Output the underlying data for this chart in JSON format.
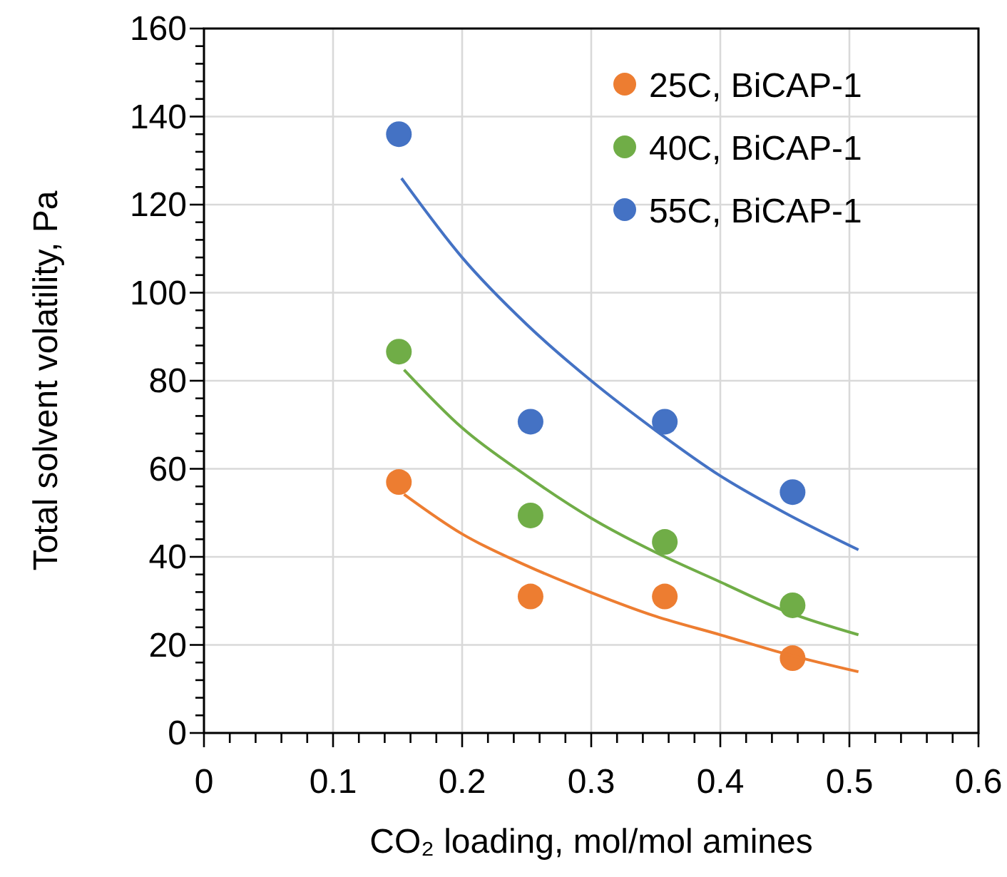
{
  "chart_data": {
    "type": "scatter",
    "xlabel": "CO₂ loading, mol/mol amines",
    "ylabel": "Total solvent volatility,  Pa",
    "xlim": [
      0,
      0.6
    ],
    "ylim": [
      0,
      160
    ],
    "xticks": [
      0,
      {
        "value": 0.02,
        "label": null
      },
      {
        "value": 0.04,
        "label": null
      },
      {
        "value": 0.06,
        "label": null
      },
      {
        "value": 0.08,
        "label": null
      },
      0.1,
      {
        "value": 0.12,
        "label": null
      },
      {
        "value": 0.14,
        "label": null
      },
      {
        "value": 0.16,
        "label": null
      },
      {
        "value": 0.18,
        "label": null
      },
      0.2,
      {
        "value": 0.22,
        "label": null
      },
      {
        "value": 0.24,
        "label": null
      },
      {
        "value": 0.26,
        "label": null
      },
      {
        "value": 0.28,
        "label": null
      },
      0.3,
      {
        "value": 0.32,
        "label": null
      },
      {
        "value": 0.34,
        "label": null
      },
      {
        "value": 0.36,
        "label": null
      },
      {
        "value": 0.38,
        "label": null
      },
      0.4,
      {
        "value": 0.42,
        "label": null
      },
      {
        "value": 0.44,
        "label": null
      },
      {
        "value": 0.46,
        "label": null
      },
      {
        "value": 0.48,
        "label": null
      },
      0.5,
      {
        "value": 0.52,
        "label": null
      },
      {
        "value": 0.54,
        "label": null
      },
      {
        "value": 0.56,
        "label": null
      },
      {
        "value": 0.58,
        "label": null
      },
      0.6
    ],
    "yticks": [
      0,
      {
        "value": 4,
        "label": null
      },
      {
        "value": 8,
        "label": null
      },
      {
        "value": 12,
        "label": null
      },
      {
        "value": 16,
        "label": null
      },
      20,
      {
        "value": 24,
        "label": null
      },
      {
        "value": 28,
        "label": null
      },
      {
        "value": 32,
        "label": null
      },
      {
        "value": 36,
        "label": null
      },
      40,
      {
        "value": 44,
        "label": null
      },
      {
        "value": 48,
        "label": null
      },
      {
        "value": 52,
        "label": null
      },
      {
        "value": 56,
        "label": null
      },
      60,
      {
        "value": 64,
        "label": null
      },
      {
        "value": 68,
        "label": null
      },
      {
        "value": 72,
        "label": null
      },
      {
        "value": 76,
        "label": null
      },
      80,
      {
        "value": 84,
        "label": null
      },
      {
        "value": 88,
        "label": null
      },
      {
        "value": 92,
        "label": null
      },
      {
        "value": 96,
        "label": null
      },
      100,
      {
        "value": 104,
        "label": null
      },
      {
        "value": 108,
        "label": null
      },
      {
        "value": 112,
        "label": null
      },
      {
        "value": 116,
        "label": null
      },
      120,
      {
        "value": 124,
        "label": null
      },
      {
        "value": 128,
        "label": null
      },
      {
        "value": 132,
        "label": null
      },
      {
        "value": 136,
        "label": null
      },
      140,
      {
        "value": 144,
        "label": null
      },
      {
        "value": 148,
        "label": null
      },
      {
        "value": 152,
        "label": null
      },
      {
        "value": 156,
        "label": null
      },
      160
    ],
    "grid": true,
    "legend": "top right",
    "series": [
      {
        "name": "25C, BiCAP-1",
        "color": "#ed7d31",
        "x": [
          0.151,
          0.253,
          0.357,
          0.456
        ],
        "values": [
          57,
          31,
          31,
          17
        ],
        "marker": "circle"
      },
      {
        "name": "40C, BiCAP-1",
        "color": "#70ad47",
        "x": [
          0.151,
          0.253,
          0.357,
          0.456
        ],
        "values": [
          86.6,
          49.4,
          43.4,
          29
        ],
        "marker": "circle"
      },
      {
        "name": "55C, BiCAP-1",
        "color": "#4472c4",
        "x": [
          0.151,
          0.253,
          0.357,
          0.456
        ],
        "values": [
          136,
          70.7,
          70.7,
          54.7
        ],
        "marker": "circle"
      },
      {
        "type": "line",
        "color": "#ed7d31",
        "x": [
          0.155,
          0.2,
          0.25,
          0.3,
          0.35,
          0.4,
          0.45,
          0.507
        ],
        "values": [
          54.2,
          45.2,
          38,
          31.9,
          26.5,
          22.3,
          18,
          13.9
        ],
        "marker": "none"
      },
      {
        "type": "line",
        "color": "#70ad47",
        "x": [
          0.155,
          0.2,
          0.25,
          0.3,
          0.35,
          0.4,
          0.45,
          0.507
        ],
        "values": [
          82.5,
          69.3,
          58.4,
          48.8,
          41,
          34.3,
          27.7,
          22.3
        ],
        "marker": "none"
      },
      {
        "type": "line",
        "color": "#4472c4",
        "x": [
          0.153,
          0.2,
          0.25,
          0.3,
          0.35,
          0.4,
          0.45,
          0.507
        ],
        "values": [
          126,
          108,
          92.8,
          80,
          68.7,
          58.4,
          50,
          41.6
        ],
        "marker": "none"
      }
    ]
  }
}
